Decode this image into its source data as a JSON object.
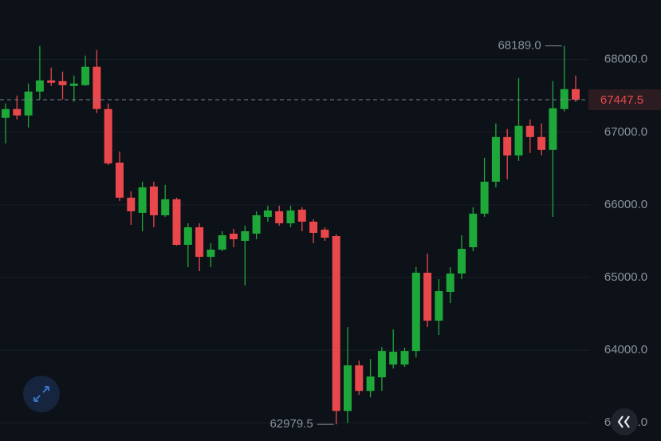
{
  "chart_data": {
    "type": "candlestick",
    "up_color": "#1ea83a",
    "down_color": "#e8484c",
    "open": [
      67198,
      67319,
      67231,
      67560,
      67714,
      67703,
      67637,
      67648,
      67901,
      67319,
      66582,
      66099,
      65890,
      66253,
      65857,
      66077,
      65450,
      65692,
      65285,
      65384,
      65604,
      65505,
      65604,
      65835,
      65912,
      65747,
      65934,
      65769,
      65659,
      65571,
      63164,
      63791,
      63439,
      63626,
      63802,
      63802,
      63989,
      65066,
      64406,
      64802,
      65055,
      65417,
      65879,
      66319,
      66934,
      66681,
      67088,
      66934,
      66758,
      67319,
      67593
    ],
    "high": [
      67396,
      67505,
      67670,
      68187,
      67890,
      67835,
      67780,
      68055,
      68132,
      67396,
      66736,
      66187,
      66319,
      66319,
      66275,
      66099,
      65747,
      65747,
      65472,
      65637,
      65670,
      65714,
      65912,
      65989,
      65989,
      65989,
      65967,
      65802,
      65692,
      65593,
      64318,
      63857,
      63879,
      64044,
      64286,
      64033,
      65143,
      65330,
      64978,
      65143,
      65582,
      65967,
      66648,
      67121,
      67044,
      67747,
      67176,
      67121,
      67703,
      68189,
      67780
    ],
    "low": [
      66846,
      67176,
      67066,
      67451,
      67637,
      67451,
      67418,
      67637,
      67264,
      66549,
      66055,
      65725,
      65637,
      65692,
      65835,
      65439,
      65143,
      65088,
      65143,
      65362,
      65417,
      64890,
      65527,
      65769,
      65714,
      65692,
      65637,
      65472,
      65505,
      62979.5,
      63000,
      63384,
      63351,
      63439,
      63747,
      63769,
      63901,
      64318,
      64209,
      64648,
      64978,
      65362,
      65835,
      66242,
      66352,
      66604,
      66714,
      66681,
      65835,
      67286,
      67418
    ],
    "close": [
      67319,
      67231,
      67560,
      67714,
      67681,
      67648,
      67670,
      67901,
      67319,
      66571,
      66099,
      65912,
      66242,
      65857,
      66077,
      65450,
      65692,
      65285,
      65384,
      65582,
      65527,
      65637,
      65857,
      65923,
      65747,
      65923,
      65769,
      65615,
      65549,
      63164,
      63791,
      63439,
      63637,
      63989,
      63978,
      63989,
      65066,
      64406,
      64813,
      65055,
      65395,
      65879,
      66319,
      66934,
      66681,
      67088,
      66934,
      66758,
      67330,
      67593,
      67447.5
    ],
    "ylim": [
      62750,
      68820
    ],
    "yticks": [
      {
        "value": 63000,
        "label": "63000.0"
      },
      {
        "value": 64000,
        "label": "64000.0"
      },
      {
        "value": 65000,
        "label": "65000.0"
      },
      {
        "value": 66000,
        "label": "66000.0"
      },
      {
        "value": 67000,
        "label": "67000.0"
      },
      {
        "value": 68000,
        "label": "68000.0"
      }
    ],
    "grid": true,
    "high_label": {
      "value": 68189,
      "label": "68189.0"
    },
    "low_label": 62979.5,
    "last_price": 67447.5
  }
}
